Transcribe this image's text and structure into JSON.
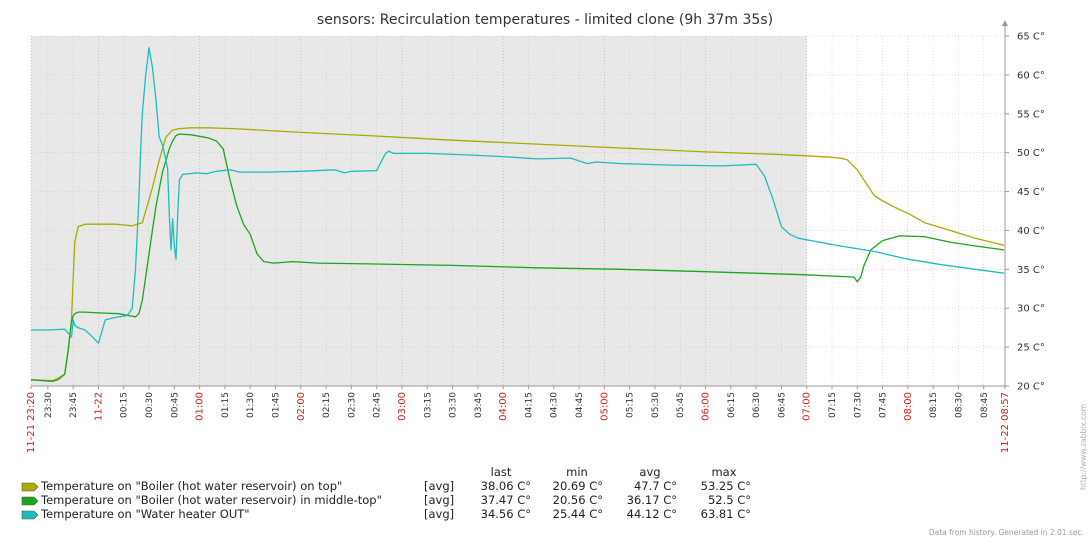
{
  "colors": {
    "series1": "#aaaa00",
    "series2": "#1da41d",
    "series3": "#1fbcbc",
    "nodata_bg": "#e8e8e8",
    "grid": "#c8c8c8",
    "red_label": "#cc2222"
  },
  "legend": {
    "headers": {
      "last": "last",
      "min": "min",
      "avg": "avg",
      "max": "max"
    },
    "rows": [
      {
        "label": "Temperature on \"Boiler (hot water reservoir) on top\"",
        "func": "[avg]",
        "last": "38.06 C°",
        "min": "20.69 C°",
        "avg": "47.7 C°",
        "max": "53.25 C°"
      },
      {
        "label": "Temperature on \"Boiler (hot water reservoir) in middle-top\"",
        "func": "[avg]",
        "last": "37.47 C°",
        "min": "20.56 C°",
        "avg": "36.17 C°",
        "max": "52.5 C°"
      },
      {
        "label": "Temperature on \"Water heater OUT\"",
        "func": "[avg]",
        "last": "34.56 C°",
        "min": "25.44 C°",
        "avg": "44.12 C°",
        "max": "63.81 C°"
      }
    ]
  },
  "footer": "Data from history. Generated in 2.01 sec.",
  "watermark": "http://www.zabbix.com",
  "chart_data": {
    "type": "line",
    "title": "sensors: Recirculation temperatures - limited clone (9h 37m 35s)",
    "y_unit": "C°",
    "ylim": [
      20,
      65
    ],
    "y_ticks": [
      20,
      25,
      30,
      35,
      40,
      45,
      50,
      55,
      60,
      65
    ],
    "y_tick_labels": [
      "20 C°",
      "25 C°",
      "30 C°",
      "35 C°",
      "40 C°",
      "45 C°",
      "50 C°",
      "55 C°",
      "60 C°",
      "65 C°"
    ],
    "x_unit": "minutes from 11-21 23:20",
    "xlim": [
      0,
      577.6
    ],
    "no_data_from": 460,
    "grid": true,
    "x_ticks": [
      {
        "t": 0,
        "label": "11-21 23:20",
        "major": true
      },
      {
        "t": 10,
        "label": "23:30"
      },
      {
        "t": 25,
        "label": "23:45"
      },
      {
        "t": 40,
        "label": "11-22",
        "major": true
      },
      {
        "t": 55,
        "label": "00:15"
      },
      {
        "t": 70,
        "label": "00:30"
      },
      {
        "t": 85,
        "label": "00:45"
      },
      {
        "t": 100,
        "label": "01:00",
        "major": true
      },
      {
        "t": 115,
        "label": "01:15"
      },
      {
        "t": 130,
        "label": "01:30"
      },
      {
        "t": 145,
        "label": "01:45"
      },
      {
        "t": 160,
        "label": "02:00",
        "major": true
      },
      {
        "t": 175,
        "label": "02:15"
      },
      {
        "t": 190,
        "label": "02:30"
      },
      {
        "t": 205,
        "label": "02:45"
      },
      {
        "t": 220,
        "label": "03:00",
        "major": true
      },
      {
        "t": 235,
        "label": "03:15"
      },
      {
        "t": 250,
        "label": "03:30"
      },
      {
        "t": 265,
        "label": "03:45"
      },
      {
        "t": 280,
        "label": "04:00",
        "major": true
      },
      {
        "t": 295,
        "label": "04:15"
      },
      {
        "t": 310,
        "label": "04:30"
      },
      {
        "t": 325,
        "label": "04:45"
      },
      {
        "t": 340,
        "label": "05:00",
        "major": true
      },
      {
        "t": 355,
        "label": "05:15"
      },
      {
        "t": 370,
        "label": "05:30"
      },
      {
        "t": 385,
        "label": "05:45"
      },
      {
        "t": 400,
        "label": "06:00",
        "major": true
      },
      {
        "t": 415,
        "label": "06:15"
      },
      {
        "t": 430,
        "label": "06:30"
      },
      {
        "t": 445,
        "label": "06:45"
      },
      {
        "t": 460,
        "label": "07:00",
        "major": true
      },
      {
        "t": 475,
        "label": "07:15"
      },
      {
        "t": 490,
        "label": "07:30"
      },
      {
        "t": 505,
        "label": "07:45"
      },
      {
        "t": 520,
        "label": "08:00",
        "major": true
      },
      {
        "t": 535,
        "label": "08:15"
      },
      {
        "t": 550,
        "label": "08:30"
      },
      {
        "t": 565,
        "label": "08:45"
      },
      {
        "t": 577.6,
        "label": "11-22 08:57",
        "major": true
      }
    ],
    "series": [
      {
        "name": "Temperature on \"Boiler (hot water reservoir) on top\"",
        "x": [
          0,
          13,
          16,
          20,
          22,
          24,
          25,
          26,
          28,
          32,
          38,
          50,
          60,
          66,
          68,
          72,
          76,
          80,
          84,
          88,
          95,
          105,
          120,
          160,
          200,
          250,
          300,
          350,
          400,
          440,
          460,
          475,
          480,
          484,
          490,
          496,
          500,
          505,
          512,
          520,
          530,
          545,
          560,
          577
        ],
        "y": [
          20.8,
          20.7,
          21.0,
          21.5,
          24.5,
          28.5,
          34,
          38.5,
          40.5,
          40.8,
          40.8,
          40.8,
          40.6,
          41,
          42.5,
          45.5,
          49,
          52,
          52.9,
          53.1,
          53.2,
          53.2,
          53.1,
          52.6,
          52.2,
          51.6,
          51.1,
          50.6,
          50.1,
          49.8,
          49.6,
          49.4,
          49.3,
          49.1,
          47.8,
          45.8,
          44.5,
          43.8,
          43.0,
          42.2,
          41.0,
          40.0,
          39.0,
          38.1
        ]
      },
      {
        "name": "Temperature on \"Boiler (hot water reservoir) in middle-top\"",
        "x": [
          0,
          13,
          16,
          20,
          22,
          23,
          24,
          25,
          26,
          28,
          32,
          40,
          52,
          62,
          64,
          66,
          70,
          74,
          78,
          82,
          84,
          86,
          88,
          95,
          100,
          105,
          110,
          114,
          116,
          118,
          122,
          126,
          130,
          134,
          138,
          144,
          155,
          170,
          200,
          250,
          300,
          350,
          400,
          460,
          488,
          490,
          492,
          494,
          498,
          505,
          515,
          530,
          545,
          560,
          577
        ],
        "y": [
          20.8,
          20.6,
          20.8,
          21.5,
          24.5,
          26.5,
          28.3,
          29.0,
          29.3,
          29.5,
          29.5,
          29.4,
          29.3,
          28.9,
          29.3,
          31,
          37,
          43,
          47.5,
          50.5,
          51.5,
          52.2,
          52.4,
          52.3,
          52.1,
          51.9,
          51.5,
          50.5,
          48.5,
          46.5,
          43.2,
          40.8,
          39.5,
          37.0,
          36.0,
          35.8,
          36.0,
          35.8,
          35.7,
          35.5,
          35.2,
          35.0,
          34.7,
          34.3,
          34.0,
          33.4,
          34.0,
          35.5,
          37.5,
          38.7,
          39.3,
          39.2,
          38.5,
          38.0,
          37.5
        ]
      },
      {
        "name": "Temperature on \"Water heater OUT\"",
        "x": [
          0,
          10,
          20,
          22,
          24,
          25,
          26,
          28,
          32,
          36,
          40,
          44,
          48,
          52,
          56,
          58,
          60,
          62,
          64,
          65,
          66,
          68,
          70,
          72,
          74,
          76,
          78,
          80,
          81,
          82,
          83,
          84,
          85,
          86,
          87,
          88,
          90,
          94,
          98,
          104,
          110,
          118,
          124,
          140,
          160,
          180,
          186,
          190,
          205,
          210,
          212,
          215,
          235,
          260,
          280,
          300,
          320,
          330,
          335,
          350,
          380,
          410,
          430,
          435,
          440,
          445,
          450,
          455,
          460,
          480,
          500,
          520,
          540,
          560,
          577
        ],
        "y": [
          27.2,
          27.2,
          27.3,
          26.8,
          26.3,
          28.5,
          27.8,
          27.5,
          27.2,
          26.4,
          25.5,
          28.5,
          28.7,
          28.9,
          29.0,
          29.3,
          30,
          35,
          44,
          50,
          55,
          60,
          63.5,
          61,
          57,
          52,
          51,
          49,
          48,
          42,
          37.5,
          41.5,
          38,
          36.3,
          42,
          46.5,
          47.2,
          47.3,
          47.4,
          47.3,
          47.6,
          47.8,
          47.5,
          47.5,
          47.6,
          47.8,
          47.4,
          47.6,
          47.7,
          49.8,
          50.2,
          49.9,
          49.9,
          49.7,
          49.5,
          49.2,
          49.3,
          48.6,
          48.8,
          48.6,
          48.4,
          48.3,
          48.5,
          47.0,
          44.0,
          40.5,
          39.5,
          39.0,
          38.8,
          38.0,
          37.3,
          36.3,
          35.6,
          35.0,
          34.5
        ]
      }
    ]
  }
}
